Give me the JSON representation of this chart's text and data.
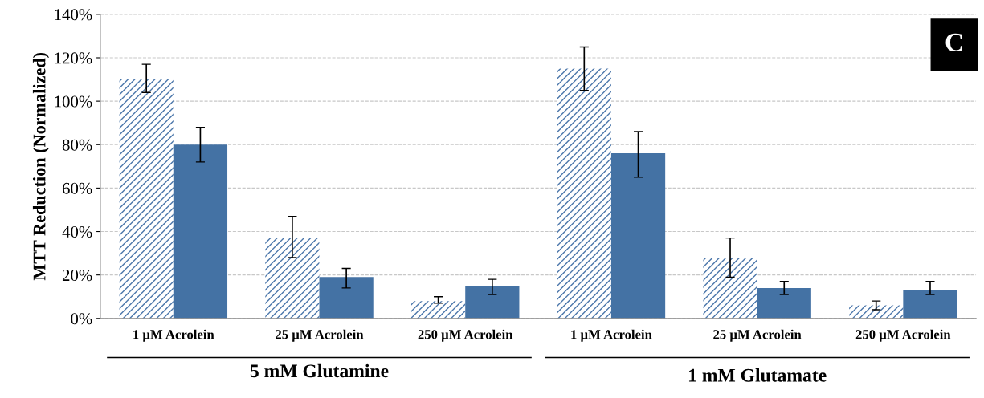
{
  "chart_data": {
    "type": "bar",
    "ylabel": "MTT Reduction (Normalized)",
    "categories": [
      "1 µM Acrolein",
      "25 µM Acrolein",
      "250 µM Acrolein",
      "1 µM Acrolein",
      "25 µM Acrolein",
      "250 µM Acrolein"
    ],
    "series": [
      {
        "color": "#4a76aa",
        "values": [
          110,
          37,
          8,
          115,
          28,
          6
        ],
        "errors": [
          [
            104,
            117
          ],
          [
            28,
            47
          ],
          [
            7,
            10
          ],
          [
            105,
            125
          ],
          [
            19,
            37
          ],
          [
            4,
            8
          ]
        ]
      },
      {
        "color": "#4472a4",
        "values": [
          80,
          19,
          15,
          76,
          14,
          13
        ],
        "errors": [
          [
            72,
            88
          ],
          [
            14,
            23
          ],
          [
            11,
            18
          ],
          [
            65,
            86
          ],
          [
            11,
            17
          ],
          [
            11,
            17
          ]
        ]
      }
    ],
    "ylim": [
      0,
      140
    ],
    "yticks": [
      {
        "value": 0,
        "label": "0%"
      },
      {
        "value": 20,
        "label": "20%"
      },
      {
        "value": 40,
        "label": "40%"
      },
      {
        "value": 60,
        "label": "60%"
      },
      {
        "value": 80,
        "label": "80%"
      },
      {
        "value": 100,
        "label": "100%"
      },
      {
        "value": 120,
        "label": "120%"
      },
      {
        "value": 140,
        "label": "140%"
      }
    ],
    "grid": "y",
    "annotations": [
      "5 mM Glutamine",
      "1 mM Glutamate",
      "C"
    ]
  }
}
